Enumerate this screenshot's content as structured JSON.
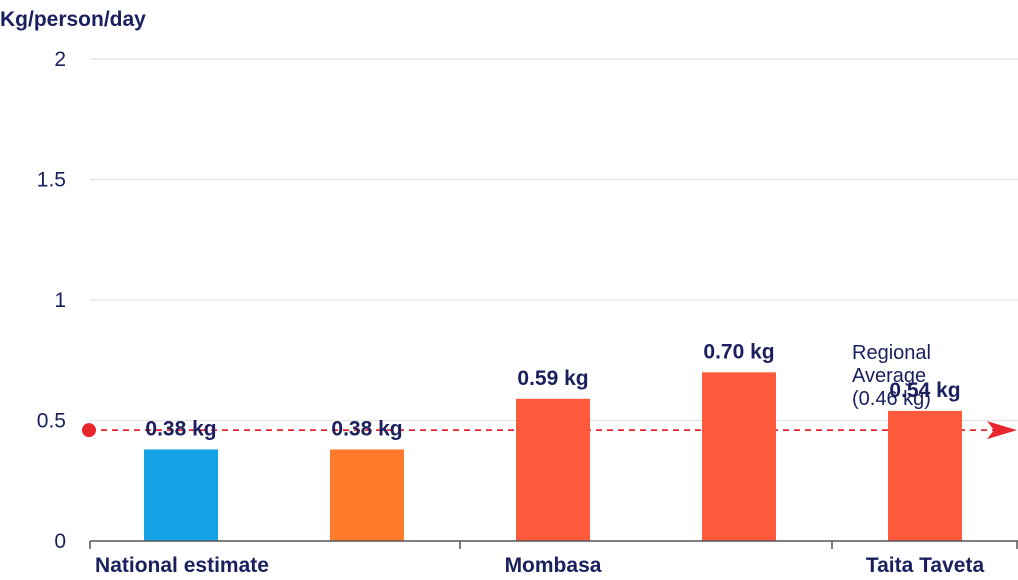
{
  "chart_data": {
    "type": "bar",
    "ylabel": "Kg/person/day",
    "ylim": [
      0,
      2
    ],
    "yticks": [
      "0",
      "0.5",
      "1",
      "1.5",
      "2"
    ],
    "ytick_values": [
      0,
      0.5,
      1,
      1.5,
      2
    ],
    "grid": true,
    "groups": [
      {
        "label": "National estimate",
        "bar_start": 0,
        "bar_count": 2
      },
      {
        "label": "Mombasa",
        "bar_start": 2,
        "bar_count": 2
      },
      {
        "label": "Taita Taveta",
        "bar_start": 4,
        "bar_count": 1
      }
    ],
    "bars": [
      {
        "value": 0.38,
        "label": "0.38 kg",
        "color": "#14a2e6"
      },
      {
        "value": 0.38,
        "label": "0.38 kg",
        "color": "#ff7a2b"
      },
      {
        "value": 0.59,
        "label": "0.59 kg",
        "color": "#ff5a3c"
      },
      {
        "value": 0.7,
        "label": "0.70 kg",
        "color": "#ff5a3c"
      },
      {
        "value": 0.54,
        "label": "0.54 kg",
        "color": "#ff5a3c"
      }
    ],
    "reference_line": {
      "value": 0.46,
      "label_lines": [
        "Regional",
        "Average",
        "(0.46 kg)"
      ],
      "color": "#e8262d"
    },
    "colors": {
      "text": "#1a1f5e",
      "grid": "#e3e3e3",
      "axis": "#555555"
    }
  }
}
